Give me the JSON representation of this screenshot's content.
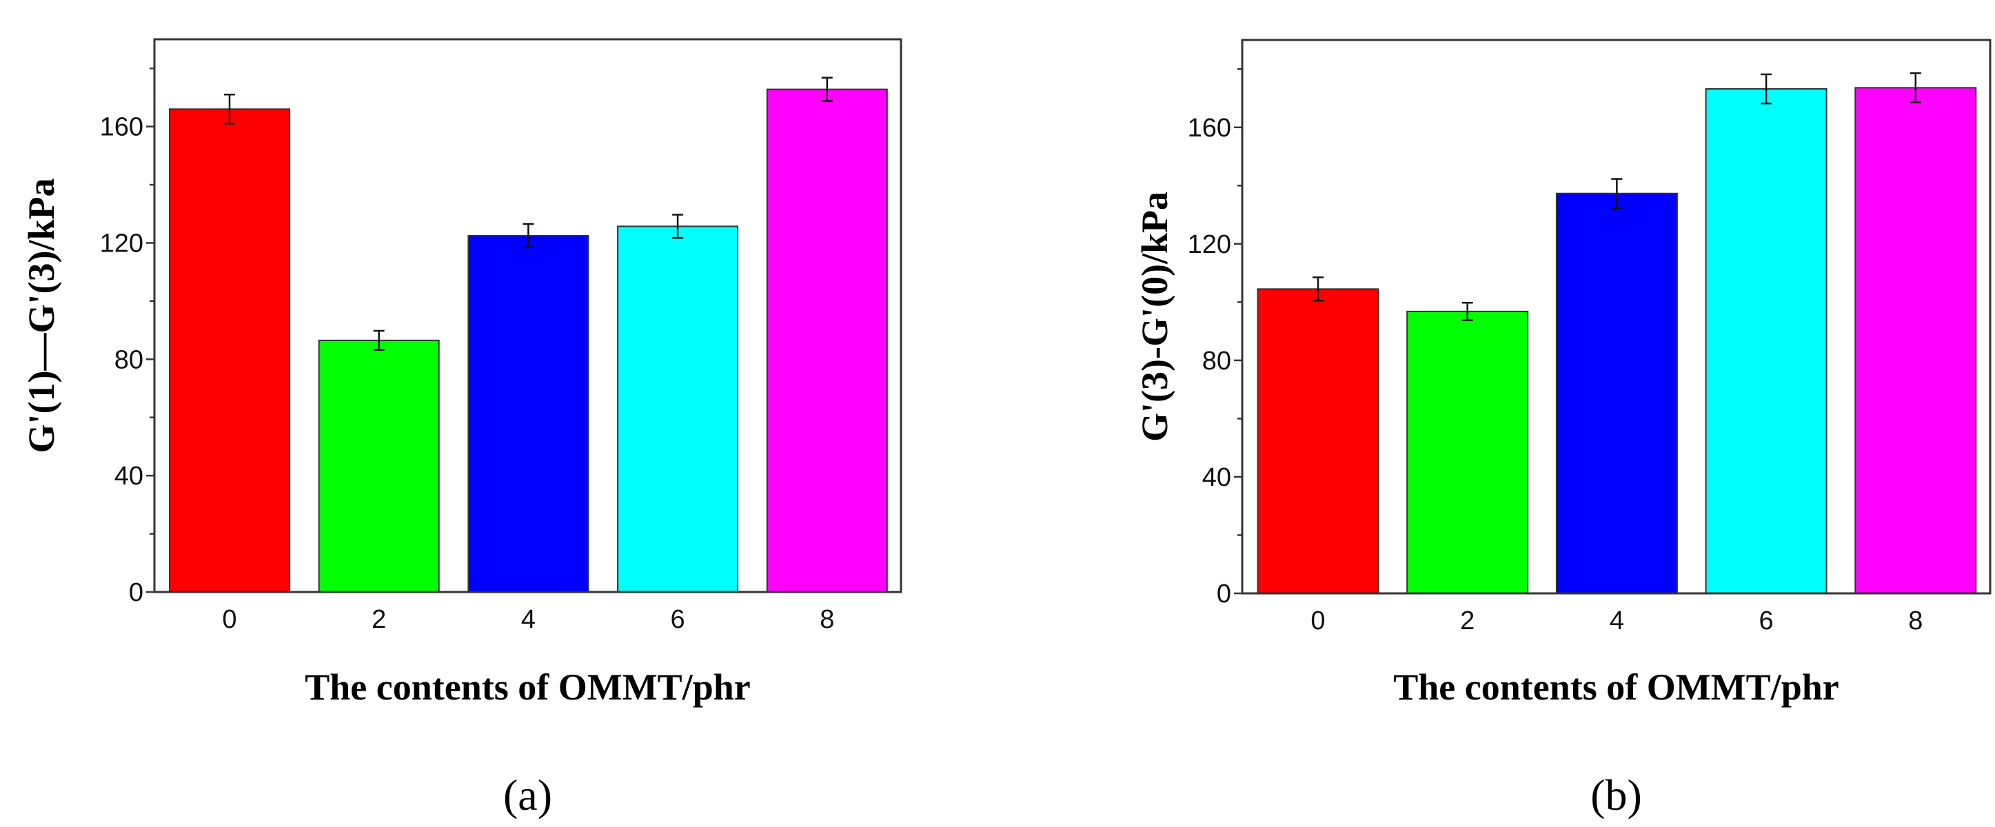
{
  "chart_data": [
    {
      "type": "bar",
      "panel_label": "(a)",
      "categories": [
        "0",
        "2",
        "4",
        "6",
        "8"
      ],
      "values": [
        166,
        86.5,
        122.5,
        125.7,
        172.8
      ],
      "errors": [
        5,
        3.3,
        4,
        4,
        4
      ],
      "colors": [
        "#ff0000",
        "#00ff00",
        "#0000ff",
        "#00ffff",
        "#ff00ff"
      ],
      "xlabel": "The contents of OMMT/phr",
      "ylabel": "G'(1)—G'(3)/kPa",
      "ylim": [
        0,
        190
      ],
      "yticks": [
        0,
        40,
        80,
        120,
        160
      ],
      "grid": false
    },
    {
      "type": "bar",
      "panel_label": "(b)",
      "categories": [
        "0",
        "2",
        "4",
        "6",
        "8"
      ],
      "values": [
        104.5,
        96.8,
        137.3,
        173.2,
        173.6
      ],
      "errors": [
        4,
        3,
        5,
        5,
        5
      ],
      "colors": [
        "#ff0000",
        "#00ff00",
        "#0000ff",
        "#00ffff",
        "#ff00ff"
      ],
      "xlabel": "The contents of OMMT/phr",
      "ylabel": "G'(3)-G'(0)/kPa",
      "ylim": [
        0,
        190
      ],
      "yticks": [
        0,
        40,
        80,
        120,
        160
      ],
      "grid": false
    }
  ]
}
